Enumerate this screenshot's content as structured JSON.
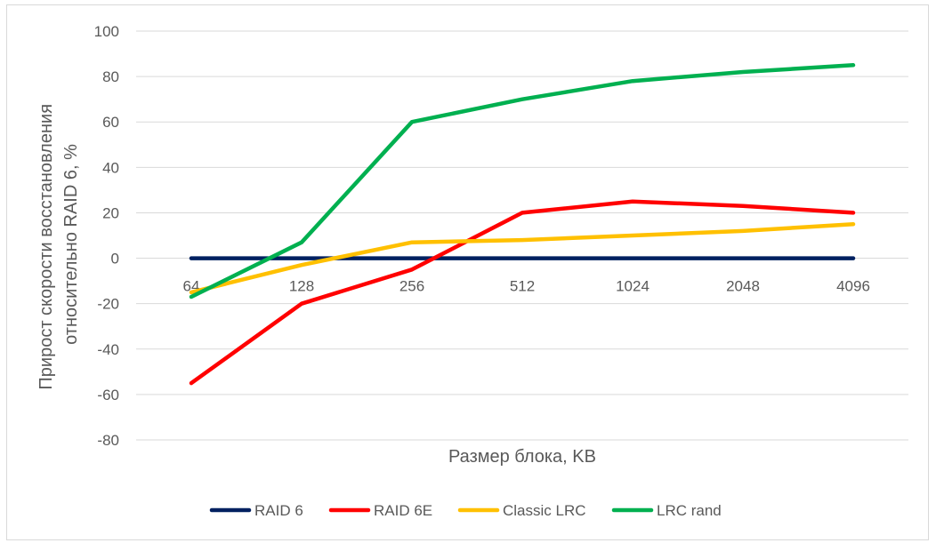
{
  "chart_data": {
    "type": "line",
    "title": "",
    "xlabel": "Размер блока, KB",
    "ylabel_lines": [
      "Прирост скорости восстановления",
      "относительно RAID 6, %"
    ],
    "categories": [
      "64",
      "128",
      "256",
      "512",
      "1024",
      "2048",
      "4096"
    ],
    "ylim": [
      -80,
      100
    ],
    "yticks": [
      100,
      80,
      60,
      40,
      20,
      0,
      -20,
      -40,
      -60,
      -80
    ],
    "ytick_labels": [
      "100",
      "80",
      "60",
      "40",
      "20",
      "0",
      "-20",
      "-40",
      "-60",
      "-80"
    ],
    "grid": true,
    "legend_position": "bottom",
    "series": [
      {
        "name": "RAID 6",
        "color": "#002060",
        "values": [
          0,
          0,
          0,
          0,
          0,
          0,
          0
        ]
      },
      {
        "name": "RAID 6E",
        "color": "#ff0000",
        "values": [
          -55,
          -20,
          -5,
          20,
          25,
          23,
          20
        ]
      },
      {
        "name": "Classic LRC",
        "color": "#ffc000",
        "values": [
          -15,
          -3,
          7,
          8,
          10,
          12,
          15
        ]
      },
      {
        "name": "LRC rand",
        "color": "#00b050",
        "values": [
          -17,
          7,
          60,
          70,
          78,
          82,
          85
        ]
      }
    ]
  }
}
